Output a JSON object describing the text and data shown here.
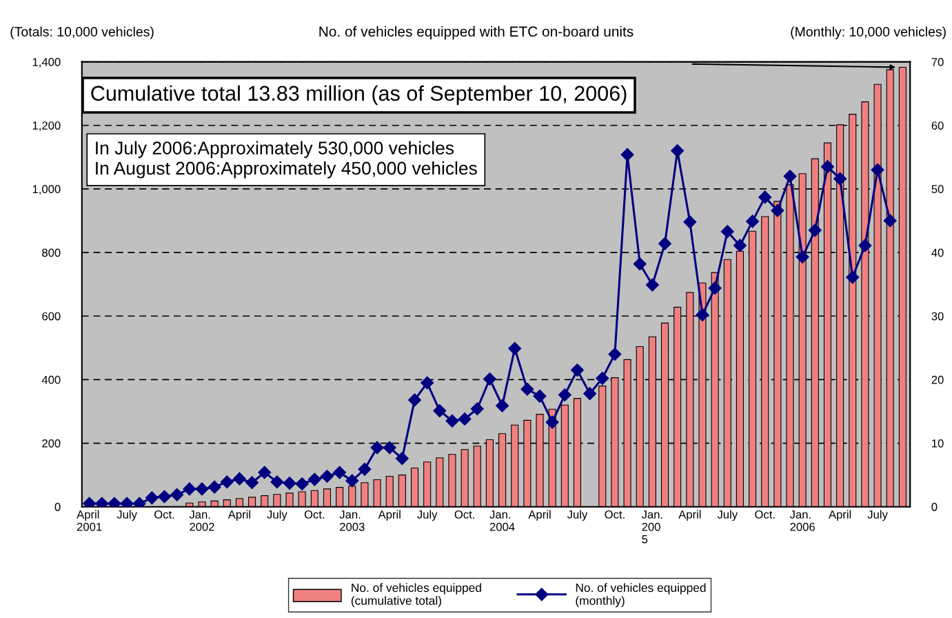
{
  "chart_data": {
    "type": "bar",
    "title": "No. of vehicles equipped with ETC on-board units",
    "ylabel": "(Totals: 10,000 vehicles)",
    "y2label": "(Monthly: 10,000 vehicles)",
    "categories": [
      "April\n2001",
      null,
      null,
      "July",
      null,
      null,
      "Oct.",
      null,
      null,
      "Jan.\n2002",
      null,
      null,
      "April",
      null,
      null,
      "July",
      null,
      null,
      "Oct.",
      null,
      null,
      "Jan.\n2003",
      null,
      null,
      "April",
      null,
      null,
      "July",
      null,
      null,
      "Oct.",
      null,
      null,
      "Jan.\n2004",
      null,
      null,
      "April",
      null,
      null,
      "July",
      null,
      null,
      "Oct.",
      null,
      null,
      "Jan.\n200\n5",
      null,
      null,
      "April",
      null,
      null,
      "July",
      null,
      null,
      "Oct.",
      null,
      null,
      "Jan.\n2006",
      null,
      null,
      "April",
      null,
      null,
      "July",
      null,
      null
    ],
    "series": [
      {
        "name": "No. of vehicles equipped\n(cumulative total)",
        "color": "#f08080",
        "values": [
          null,
          null,
          null,
          null,
          null,
          null,
          null,
          null,
          12,
          15,
          18,
          22,
          26,
          30,
          35,
          39,
          43,
          47,
          51,
          56,
          61,
          65,
          76,
          85,
          96,
          100,
          122,
          141,
          154,
          165,
          180,
          191,
          211,
          230,
          257,
          272,
          291,
          307,
          320,
          341,
          null,
          380,
          406,
          463,
          504,
          535,
          578,
          628,
          674,
          704,
          737,
          778,
          804,
          867,
          913,
          961,
          1013,
          1048,
          1095,
          1145,
          1202,
          1235,
          1274,
          1329,
          1375,
          1383
        ]
      },
      {
        "name": "No. of vehicles equipped\n(monthly)",
        "type": "line",
        "axis": "y2",
        "color": "#000080",
        "marker": "diamond",
        "values": [
          0.5,
          0.5,
          0.5,
          0.5,
          0.5,
          1.4,
          1.6,
          1.9,
          2.8,
          2.8,
          3.1,
          3.9,
          4.4,
          3.8,
          5.4,
          3.9,
          3.7,
          3.6,
          4.3,
          4.8,
          5.4,
          4.1,
          5.9,
          9.3,
          9.3,
          7.6,
          16.8,
          19.5,
          15.1,
          13.5,
          13.8,
          15.4,
          20.1,
          15.9,
          24.9,
          18.5,
          17.4,
          13.3,
          17.6,
          21.5,
          17.8,
          20.2,
          24,
          55.4,
          38.2,
          34.9,
          41.4,
          56,
          44.8,
          30.2,
          34.4,
          43.3,
          41.1,
          44.9,
          48.7,
          46.6,
          52,
          39.3,
          43.5,
          53.5,
          51.6,
          36.1,
          41.1,
          53,
          45,
          null
        ]
      }
    ],
    "ylim": [
      0,
      1400
    ],
    "yticks": [
      0,
      {
        "value": 200,
        "label": "200"
      },
      {
        "value": 400,
        "label": "400"
      },
      {
        "value": 600,
        "label": "600"
      },
      {
        "value": 800,
        "label": "800"
      },
      {
        "value": 1000,
        "label": "1,000"
      },
      {
        "value": 1200,
        "label": "1,200"
      },
      {
        "value": 1400,
        "label": "1,400"
      }
    ],
    "y2lim": [
      0,
      70
    ],
    "y2ticks": [
      0,
      10,
      20,
      30,
      40,
      50,
      60,
      70
    ],
    "grid": "y",
    "legend": "bottom",
    "annotations": [
      "Cumulative total 13.83 million (as of September 10, 2006)",
      "In July 2006:Approximately 530,000 vehicles\nIn August 2006:Approximately 450,000 vehicles"
    ]
  }
}
